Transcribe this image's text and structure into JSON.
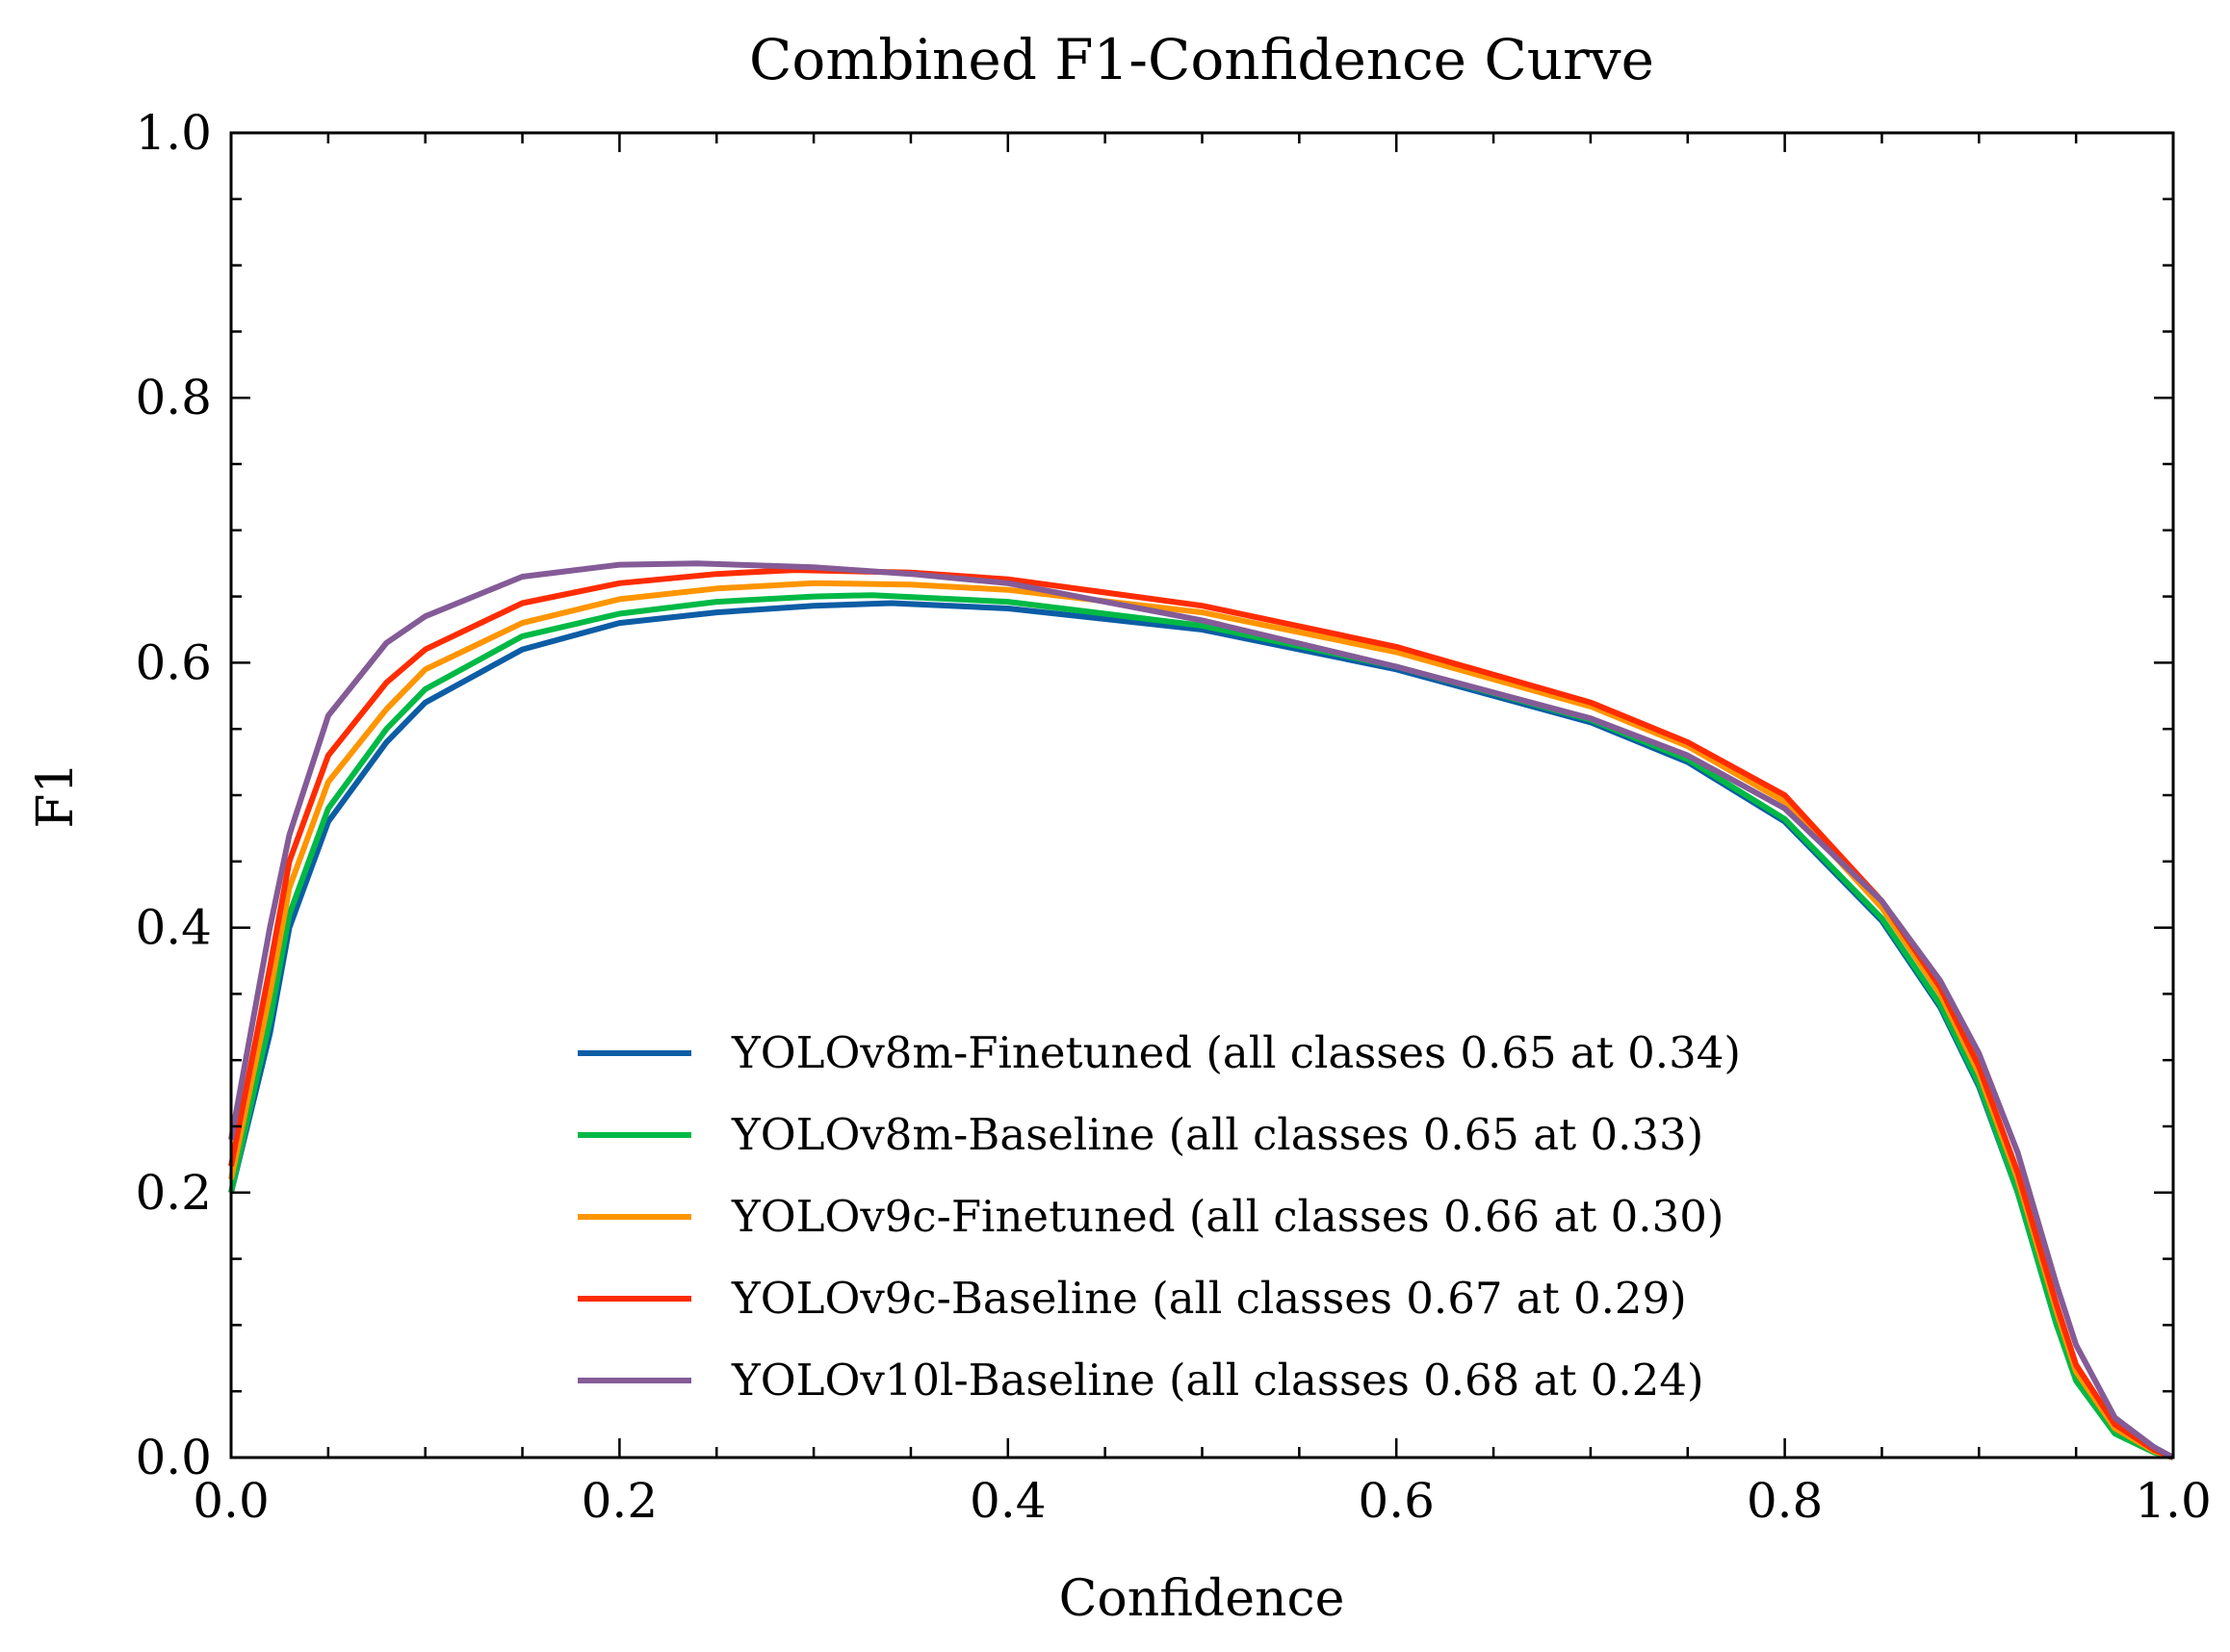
{
  "chart_data": {
    "type": "line",
    "title": "Combined F1-Confidence Curve",
    "xlabel": "Confidence",
    "ylabel": "F1",
    "xlim": [
      0,
      1
    ],
    "ylim": [
      0,
      1
    ],
    "xticks": [
      "0.0",
      "0.2",
      "0.4",
      "0.6",
      "0.8",
      "1.0"
    ],
    "yticks": [
      "0.0",
      "0.2",
      "0.4",
      "0.6",
      "0.8",
      "1.0"
    ],
    "grid": false,
    "legend_position": "lower-center",
    "series": [
      {
        "name": "YOLOv8m-Finetuned (all classes 0.65 at 0.34)",
        "color": "#0C5DA5",
        "x": [
          0.0,
          0.02,
          0.03,
          0.05,
          0.08,
          0.1,
          0.15,
          0.2,
          0.25,
          0.3,
          0.34,
          0.4,
          0.5,
          0.6,
          0.7,
          0.75,
          0.8,
          0.85,
          0.88,
          0.9,
          0.92,
          0.94,
          0.95,
          0.97,
          0.99,
          1.0
        ],
        "y": [
          0.2,
          0.32,
          0.4,
          0.48,
          0.54,
          0.57,
          0.61,
          0.63,
          0.638,
          0.643,
          0.645,
          0.641,
          0.625,
          0.595,
          0.555,
          0.525,
          0.48,
          0.405,
          0.34,
          0.28,
          0.2,
          0.1,
          0.06,
          0.02,
          0.005,
          0.0
        ]
      },
      {
        "name": "YOLOv8m-Baseline (all classes 0.65 at 0.33)",
        "color": "#00B945",
        "x": [
          0.0,
          0.02,
          0.03,
          0.05,
          0.08,
          0.1,
          0.15,
          0.2,
          0.25,
          0.3,
          0.33,
          0.4,
          0.5,
          0.6,
          0.7,
          0.75,
          0.8,
          0.85,
          0.88,
          0.9,
          0.92,
          0.94,
          0.95,
          0.97,
          0.99,
          1.0
        ],
        "y": [
          0.2,
          0.33,
          0.41,
          0.49,
          0.55,
          0.58,
          0.62,
          0.637,
          0.646,
          0.65,
          0.651,
          0.646,
          0.628,
          0.597,
          0.557,
          0.527,
          0.482,
          0.407,
          0.342,
          0.282,
          0.2,
          0.1,
          0.058,
          0.018,
          0.004,
          0.0
        ]
      },
      {
        "name": "YOLOv9c-Finetuned (all classes 0.66 at 0.30)",
        "color": "#FF9500",
        "x": [
          0.0,
          0.02,
          0.03,
          0.05,
          0.08,
          0.1,
          0.15,
          0.2,
          0.25,
          0.3,
          0.35,
          0.4,
          0.5,
          0.6,
          0.7,
          0.75,
          0.8,
          0.85,
          0.88,
          0.9,
          0.92,
          0.94,
          0.95,
          0.97,
          0.99,
          1.0
        ],
        "y": [
          0.21,
          0.35,
          0.43,
          0.51,
          0.565,
          0.595,
          0.63,
          0.648,
          0.656,
          0.66,
          0.659,
          0.655,
          0.638,
          0.608,
          0.567,
          0.537,
          0.495,
          0.415,
          0.35,
          0.29,
          0.21,
          0.11,
          0.065,
          0.022,
          0.005,
          0.0
        ]
      },
      {
        "name": "YOLOv9c-Baseline (all classes 0.67 at 0.29)",
        "color": "#FF2C00",
        "x": [
          0.0,
          0.02,
          0.03,
          0.05,
          0.08,
          0.1,
          0.15,
          0.2,
          0.25,
          0.29,
          0.35,
          0.4,
          0.5,
          0.6,
          0.7,
          0.75,
          0.8,
          0.85,
          0.88,
          0.9,
          0.92,
          0.94,
          0.95,
          0.97,
          0.99,
          1.0
        ],
        "y": [
          0.22,
          0.37,
          0.45,
          0.53,
          0.585,
          0.61,
          0.645,
          0.66,
          0.667,
          0.67,
          0.668,
          0.663,
          0.643,
          0.612,
          0.57,
          0.54,
          0.5,
          0.42,
          0.355,
          0.295,
          0.215,
          0.115,
          0.07,
          0.025,
          0.006,
          0.0
        ]
      },
      {
        "name": "YOLOv10l-Baseline (all classes 0.68 at 0.24)",
        "color": "#845B97",
        "x": [
          0.0,
          0.01,
          0.02,
          0.03,
          0.05,
          0.08,
          0.1,
          0.15,
          0.2,
          0.24,
          0.3,
          0.35,
          0.4,
          0.5,
          0.6,
          0.7,
          0.75,
          0.8,
          0.85,
          0.88,
          0.9,
          0.92,
          0.94,
          0.95,
          0.97,
          0.99,
          1.0
        ],
        "y": [
          0.24,
          0.32,
          0.4,
          0.47,
          0.56,
          0.615,
          0.635,
          0.665,
          0.674,
          0.675,
          0.672,
          0.667,
          0.66,
          0.632,
          0.597,
          0.558,
          0.53,
          0.49,
          0.42,
          0.36,
          0.305,
          0.23,
          0.13,
          0.085,
          0.03,
          0.008,
          0.0
        ]
      }
    ]
  }
}
